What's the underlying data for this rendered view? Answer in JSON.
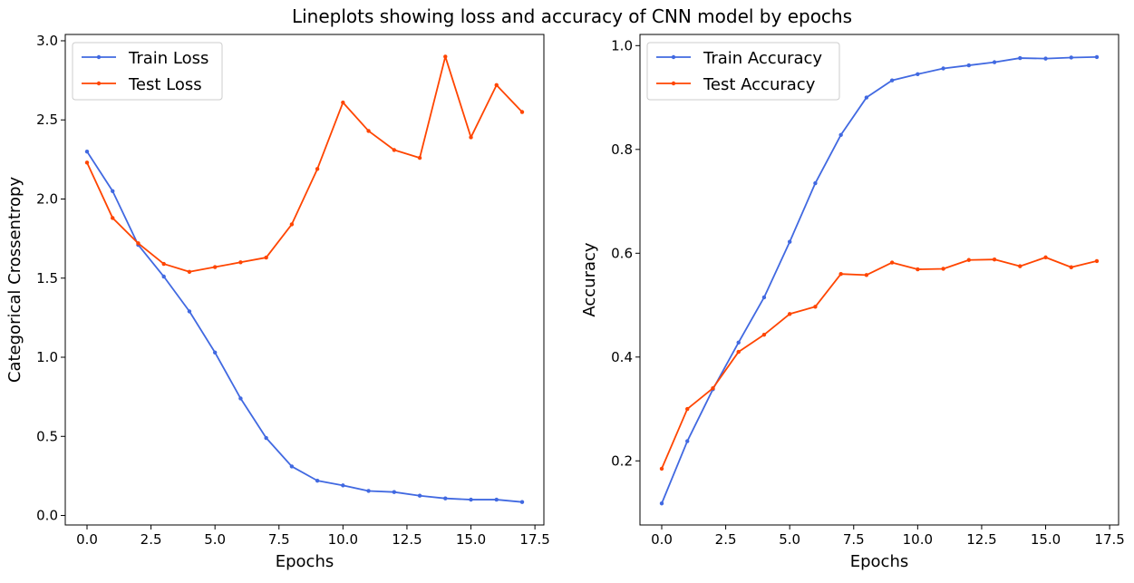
{
  "figure": {
    "title": "Lineplots showing loss and accuracy of CNN model by epochs"
  },
  "chart_data": [
    {
      "type": "line",
      "title": "",
      "xlabel": "Epochs",
      "ylabel": "Categorical Crossentropy",
      "xlim": [
        -0.85,
        17.85
      ],
      "ylim": [
        -0.06,
        3.04
      ],
      "xticks": [
        0.0,
        2.5,
        5.0,
        7.5,
        10.0,
        12.5,
        15.0,
        17.5
      ],
      "xtick_labels": [
        "0.0",
        "2.5",
        "5.0",
        "7.5",
        "10.0",
        "12.5",
        "15.0",
        "17.5"
      ],
      "yticks": [
        0.0,
        0.5,
        1.0,
        1.5,
        2.0,
        2.5,
        3.0
      ],
      "ytick_labels": [
        "0.0",
        "0.5",
        "1.0",
        "1.5",
        "2.0",
        "2.5",
        "3.0"
      ],
      "grid": false,
      "legend": "upper left",
      "x": [
        0,
        1,
        2,
        3,
        4,
        5,
        6,
        7,
        8,
        9,
        10,
        11,
        12,
        13,
        14,
        15,
        16,
        17
      ],
      "series": [
        {
          "name": "Train Loss",
          "color": "#4169e1",
          "values": [
            2.3,
            2.05,
            1.71,
            1.51,
            1.29,
            1.03,
            0.74,
            0.49,
            0.31,
            0.22,
            0.19,
            0.155,
            0.148,
            0.125,
            0.108,
            0.1,
            0.1,
            0.085
          ]
        },
        {
          "name": "Test Loss",
          "color": "#ff4500",
          "values": [
            2.23,
            1.88,
            1.72,
            1.59,
            1.54,
            1.57,
            1.6,
            1.63,
            1.84,
            2.19,
            2.61,
            2.43,
            2.31,
            2.26,
            2.9,
            2.39,
            2.72,
            2.55
          ]
        }
      ]
    },
    {
      "type": "line",
      "title": "",
      "xlabel": "Epochs",
      "ylabel": "Accuracy",
      "xlim": [
        -0.85,
        17.85
      ],
      "ylim": [
        0.0765,
        1.0215
      ],
      "xticks": [
        0.0,
        2.5,
        5.0,
        7.5,
        10.0,
        12.5,
        15.0,
        17.5
      ],
      "xtick_labels": [
        "0.0",
        "2.5",
        "5.0",
        "7.5",
        "10.0",
        "12.5",
        "15.0",
        "17.5"
      ],
      "yticks": [
        0.2,
        0.4,
        0.6,
        0.8,
        1.0
      ],
      "ytick_labels": [
        "0.2",
        "0.4",
        "0.6",
        "0.8",
        "1.0"
      ],
      "grid": false,
      "legend": "upper left",
      "x": [
        0,
        1,
        2,
        3,
        4,
        5,
        6,
        7,
        8,
        9,
        10,
        11,
        12,
        13,
        14,
        15,
        16,
        17
      ],
      "series": [
        {
          "name": "Train Accuracy",
          "color": "#4169e1",
          "values": [
            0.118,
            0.238,
            0.338,
            0.428,
            0.515,
            0.622,
            0.735,
            0.828,
            0.9,
            0.933,
            0.945,
            0.956,
            0.962,
            0.968,
            0.976,
            0.975,
            0.977,
            0.978
          ]
        },
        {
          "name": "Test Accuracy",
          "color": "#ff4500",
          "values": [
            0.185,
            0.3,
            0.34,
            0.41,
            0.443,
            0.483,
            0.497,
            0.56,
            0.558,
            0.582,
            0.569,
            0.57,
            0.587,
            0.588,
            0.575,
            0.592,
            0.573,
            0.585
          ]
        }
      ]
    }
  ]
}
